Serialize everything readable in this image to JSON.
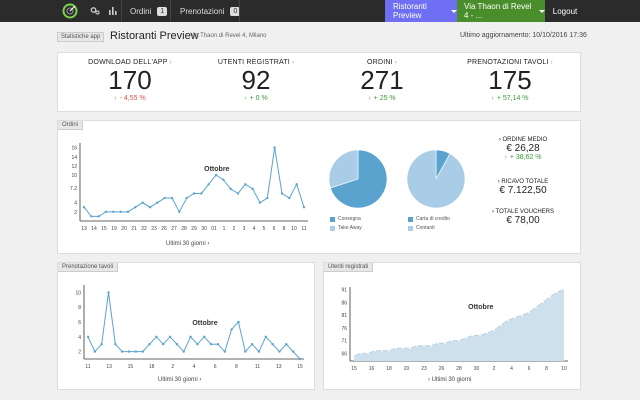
{
  "nav": {
    "orders_label": "Ordini",
    "orders_count": "1",
    "reservations_label": "Prenotazioni",
    "reservations_count": "0",
    "preview_label": "Ristoranti Preview",
    "location_label": "Via Thaon di Revel 4 - ...",
    "logout_label": "Logout"
  },
  "header": {
    "tag": "Statistiche app",
    "title": "Ristoranti Preview",
    "address": "Via Thaon di Revel 4, Milano",
    "updated": "Ultimo aggiornamento: 10/10/2016 17:36"
  },
  "stats": [
    {
      "label": "DOWNLOAD DELL'APP",
      "value": "170",
      "delta": "- 4,55 %",
      "trend": "neg"
    },
    {
      "label": "UTENTI REGISTRATI",
      "value": "92",
      "delta": "+ 0 %",
      "trend": "pos"
    },
    {
      "label": "ORDINI",
      "value": "271",
      "delta": "+ 25 %",
      "trend": "pos"
    },
    {
      "label": "PRENOTAZIONI TAVOLI",
      "value": "175",
      "delta": "+ 57,14 %",
      "trend": "pos"
    }
  ],
  "orders_panel": {
    "label": "Ordini",
    "footer": "Ultimi 30 giorni",
    "legend1": [
      "Consegna",
      "Take Away"
    ],
    "legend2": [
      "Carta di credito",
      "Contanti"
    ],
    "avg_label": "ORDINE MEDIO",
    "avg_value": "€ 26,28",
    "avg_delta": "+ 38,62 %",
    "revenue_label": "RICAVO TOTALE",
    "revenue_value": "€ 7.122,50",
    "vouchers_label": "TOTALE VOUCHERS",
    "vouchers_value": "€ 78,00"
  },
  "reservations_panel": {
    "label": "Prenotazione tavoli",
    "footer": "Ultimi 30 giorni"
  },
  "users_panel": {
    "label": "Utenti registrati",
    "footer": "Ultimi 30 giorni"
  },
  "colors": {
    "primary": "#5ba3cf",
    "light": "#a9cde6",
    "area": "#cde0ec"
  },
  "chart_data": [
    {
      "type": "line",
      "name": "orders",
      "annotation": "Ottobre",
      "ylim": [
        0,
        17
      ],
      "yticks": [
        2,
        4,
        7.2,
        10,
        12,
        14,
        16
      ],
      "ytick_labels": [
        "2",
        "4",
        "7.2",
        "10",
        "12",
        "14",
        "16"
      ],
      "x": [
        "13",
        "14",
        "15",
        "",
        "",
        "",
        "",
        "19",
        "20",
        "21",
        "22",
        "23",
        "",
        "",
        "26",
        "27",
        "28",
        "29",
        "30",
        "01",
        "1",
        "2",
        "3",
        "4",
        "5",
        "6",
        "7",
        "8",
        "",
        "10",
        "11"
      ],
      "xtick_labels": [
        "13",
        "14",
        "15",
        "19",
        "20",
        "21",
        "22",
        "23",
        "26",
        "27",
        "28",
        "29",
        "30",
        "01",
        "1",
        "2",
        "3",
        "4",
        "5",
        "6",
        "8",
        "10",
        "11"
      ],
      "values": [
        3,
        1,
        1,
        2,
        2,
        2,
        2,
        3,
        4,
        3,
        4,
        5,
        5,
        2,
        5,
        6,
        6,
        8,
        10,
        9,
        7,
        6,
        8,
        7,
        4,
        5,
        16,
        6,
        5,
        8,
        3
      ]
    },
    {
      "type": "pie",
      "name": "delivery",
      "categories": [
        "Consegna",
        "Take Away"
      ],
      "values": [
        70,
        30
      ]
    },
    {
      "type": "pie",
      "name": "payment",
      "categories": [
        "Carta di credito",
        "Contanti"
      ],
      "values": [
        8,
        92
      ]
    },
    {
      "type": "line",
      "name": "reservations",
      "annotation": "Ottobre",
      "ylim": [
        1,
        11
      ],
      "yticks": [
        2,
        4,
        6,
        8,
        10
      ],
      "xtick_labels": [
        "11",
        "13",
        "15",
        "18",
        "2",
        "4",
        "6",
        "8",
        "11",
        "13",
        "15"
      ],
      "values": [
        4,
        2,
        3,
        10,
        3,
        2,
        2,
        2,
        2,
        3,
        4,
        3,
        4,
        3,
        2,
        4,
        3,
        4,
        3,
        3,
        2,
        5,
        6,
        2,
        3,
        2,
        4,
        3,
        2,
        3,
        2,
        1
      ]
    },
    {
      "type": "area",
      "name": "registered_users",
      "annotation": "Ottobre",
      "ylim": [
        63,
        92
      ],
      "yticks": [
        66,
        71,
        76,
        81,
        86,
        91
      ],
      "xtick_labels": [
        "15",
        "16",
        "18",
        "20",
        "23",
        "26",
        "28",
        "30",
        "2",
        "4",
        "6",
        "8",
        "10"
      ],
      "values": [
        65,
        66,
        66,
        67,
        67,
        67,
        68,
        68,
        68,
        69,
        69,
        69,
        70,
        70,
        71,
        71,
        72,
        73,
        73,
        74,
        75,
        77,
        79,
        80,
        81,
        82,
        84,
        86,
        88,
        90,
        91
      ]
    }
  ]
}
